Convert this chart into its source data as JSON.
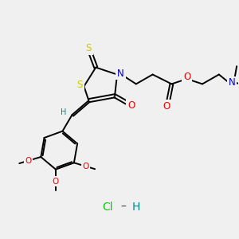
{
  "background_color": "#f0f0f0",
  "figsize": [
    3.0,
    3.0
  ],
  "dpi": 100,
  "bond_color": "#000000",
  "bond_lw": 1.4,
  "S_color": "#cccc00",
  "N_color": "#0000cc",
  "O_color": "#ee0000",
  "H_color": "#008888",
  "Cl_color": "#00cc00",
  "HCl_H_color": "#008888",
  "fs": 7.0,
  "xlim": [
    0,
    10
  ],
  "ylim": [
    0,
    10
  ]
}
